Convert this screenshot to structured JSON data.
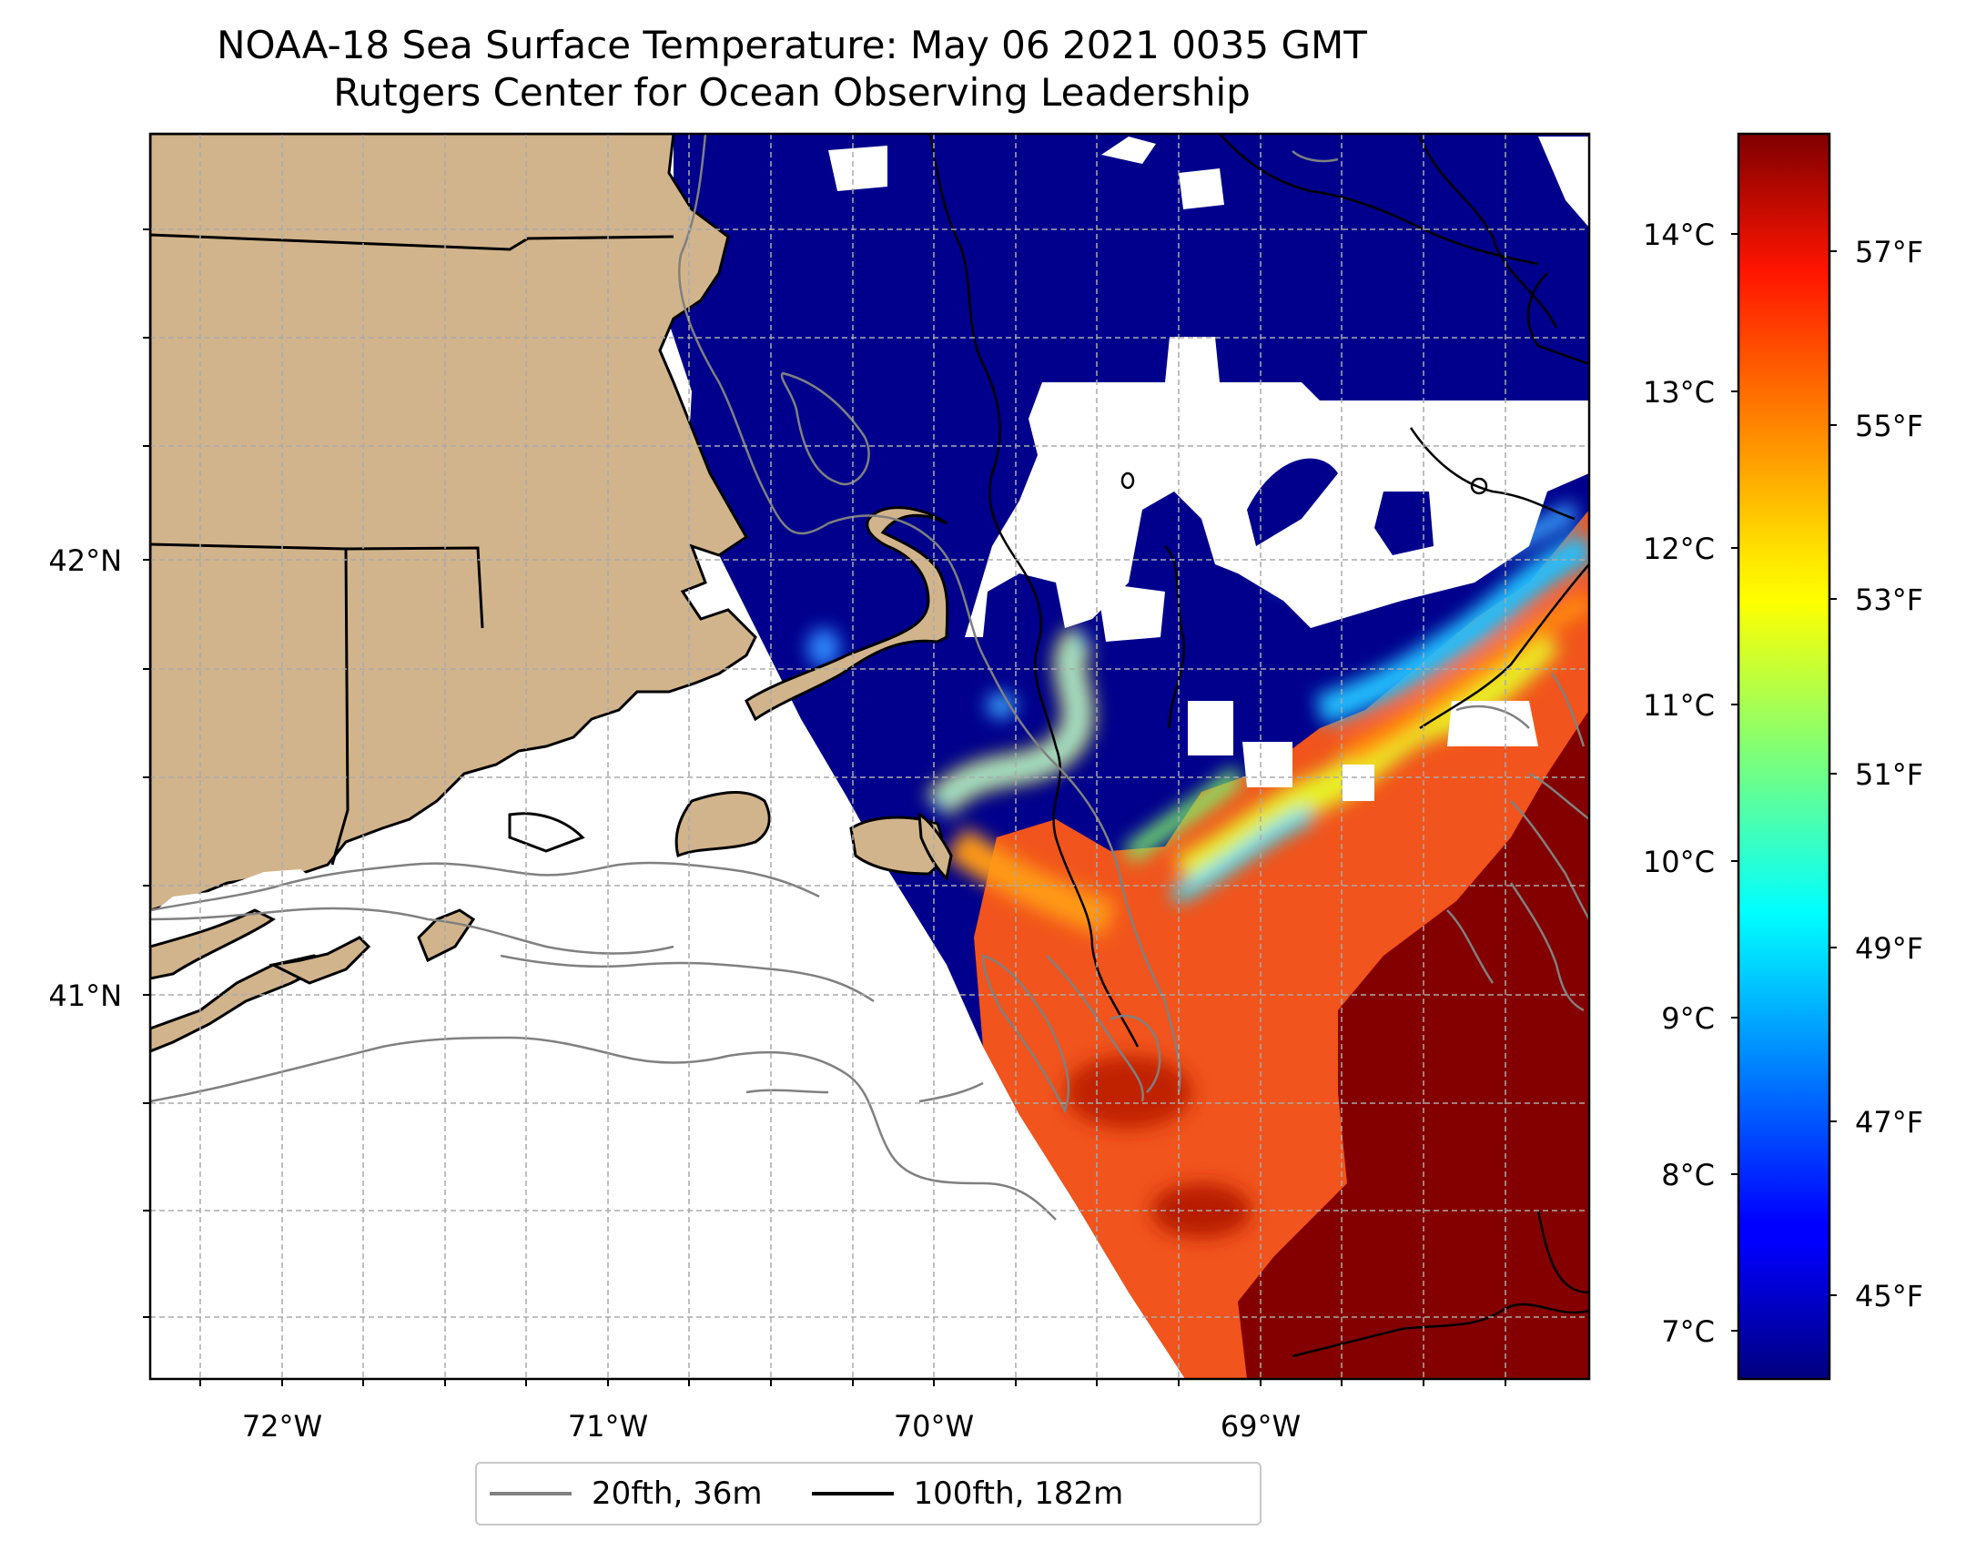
{
  "title": {
    "line1": "NOAA-18 Sea Surface Temperature: May 06 2021 0035 GMT",
    "line2": "Rutgers Center for Ocean Observing Leadership"
  },
  "map": {
    "lon_labels": [
      "72°W",
      "71°W",
      "70°W",
      "69°W"
    ],
    "lat_labels": [
      "42°N",
      "41°N"
    ],
    "land_color": "#d2b48c",
    "missing_color": "#ffffff"
  },
  "colorbar": {
    "colormap": "jet",
    "celsius_labels": [
      "14°C",
      "13°C",
      "12°C",
      "11°C",
      "10°C",
      "9°C",
      "8°C",
      "7°C"
    ],
    "fahrenheit_labels": [
      "57°F",
      "55°F",
      "53°F",
      "51°F",
      "49°F",
      "47°F",
      "45°F"
    ]
  },
  "legend": {
    "items": [
      {
        "label": "20fth, 36m",
        "color": "#808080"
      },
      {
        "label": "100fth, 182m",
        "color": "#000000"
      }
    ]
  }
}
